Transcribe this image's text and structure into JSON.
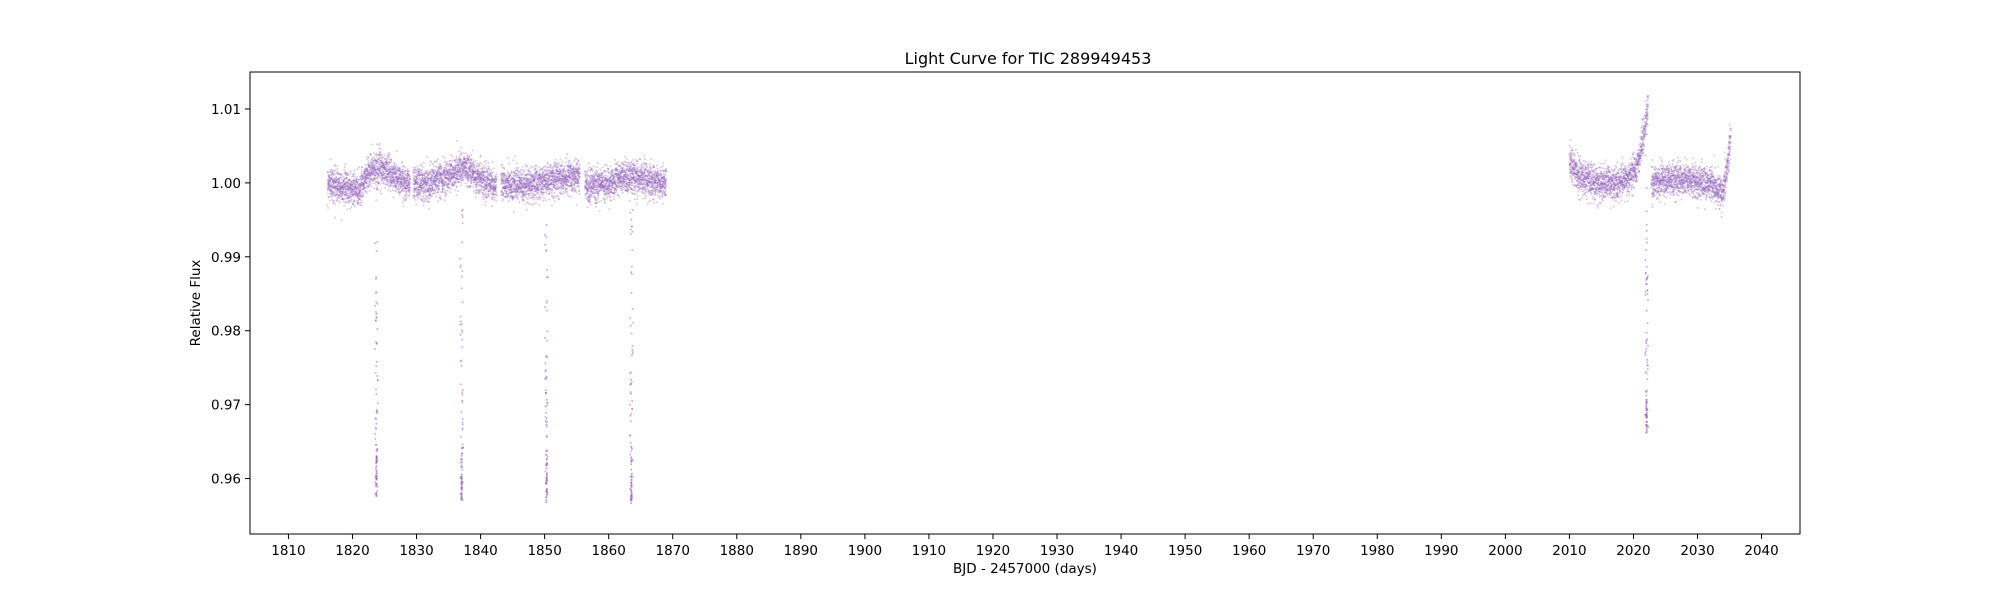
{
  "chart_data": {
    "type": "scatter",
    "title": "Light Curve for TIC 289949453",
    "xlabel": "BJD - 2457000 (days)",
    "ylabel": "Relative Flux",
    "xlim": [
      1804,
      2046
    ],
    "ylim": [
      0.9525,
      1.015
    ],
    "x_ticks": [
      1810,
      1820,
      1830,
      1840,
      1850,
      1860,
      1870,
      1880,
      1890,
      1900,
      1910,
      1920,
      1930,
      1940,
      1950,
      1960,
      1970,
      1980,
      1990,
      2000,
      2010,
      2020,
      2030,
      2040
    ],
    "y_ticks": [
      0.96,
      0.97,
      0.98,
      0.99,
      1.0,
      1.01
    ],
    "y_tick_labels": [
      "0.96",
      "0.97",
      "0.98",
      "0.99",
      "1.00",
      "1.01"
    ],
    "grid": false,
    "legend": "none",
    "series_color": "#9467bd",
    "series": [
      {
        "segments": [
          {
            "start": 1816.1,
            "end": 1829.0,
            "profile": [
              [
                1816.1,
                1.0
              ],
              [
                1818.5,
                0.9995
              ],
              [
                1821.0,
                0.999
              ],
              [
                1822.5,
                1.0015
              ],
              [
                1824.0,
                1.002
              ],
              [
                1825.5,
                1.0015
              ],
              [
                1827.0,
                1.0005
              ],
              [
                1829.0,
                1.0
              ]
            ]
          },
          {
            "start": 1829.5,
            "end": 1842.5,
            "profile": [
              [
                1829.5,
                1.0
              ],
              [
                1832.0,
                1.0
              ],
              [
                1835.0,
                1.001
              ],
              [
                1837.5,
                1.002
              ],
              [
                1840.0,
                1.0005
              ],
              [
                1842.5,
                0.9995
              ]
            ]
          },
          {
            "start": 1843.2,
            "end": 1855.5,
            "profile": [
              [
                1843.2,
                1.0
              ],
              [
                1846.0,
                0.9995
              ],
              [
                1849.0,
                1.0
              ],
              [
                1852.0,
                1.0005
              ],
              [
                1855.5,
                1.0008
              ]
            ]
          },
          {
            "start": 1856.3,
            "end": 1869.0,
            "profile": [
              [
                1856.3,
                0.9995
              ],
              [
                1860.0,
                1.0
              ],
              [
                1863.5,
                1.0008
              ],
              [
                1866.0,
                1.0003
              ],
              [
                1869.0,
                1.0
              ]
            ]
          },
          {
            "start": 2010.0,
            "end": 2022.3,
            "profile": [
              [
                2010.0,
                1.003
              ],
              [
                2011.5,
                1.001
              ],
              [
                2014.0,
                1.0
              ],
              [
                2017.0,
                1.0
              ],
              [
                2019.0,
                1.0005
              ],
              [
                2020.5,
                1.002
              ],
              [
                2021.5,
                1.006
              ],
              [
                2022.3,
                1.01
              ]
            ]
          },
          {
            "start": 2022.8,
            "end": 2035.2,
            "profile": [
              [
                2022.8,
                1.0
              ],
              [
                2026.0,
                1.0005
              ],
              [
                2029.0,
                1.0003
              ],
              [
                2032.0,
                1.0
              ],
              [
                2034.0,
                0.9985
              ],
              [
                2034.6,
                1.002
              ],
              [
                2035.2,
                1.006
              ]
            ]
          }
        ],
        "transits": [
          {
            "center": 1823.75,
            "min_flux": 0.9575
          },
          {
            "center": 1837.05,
            "min_flux": 0.957
          },
          {
            "center": 1850.3,
            "min_flux": 0.9565
          },
          {
            "center": 1863.55,
            "min_flux": 0.9565
          },
          {
            "center": 2022.05,
            "min_flux": 0.966
          }
        ],
        "scatter_sigma": 0.0011
      }
    ]
  }
}
